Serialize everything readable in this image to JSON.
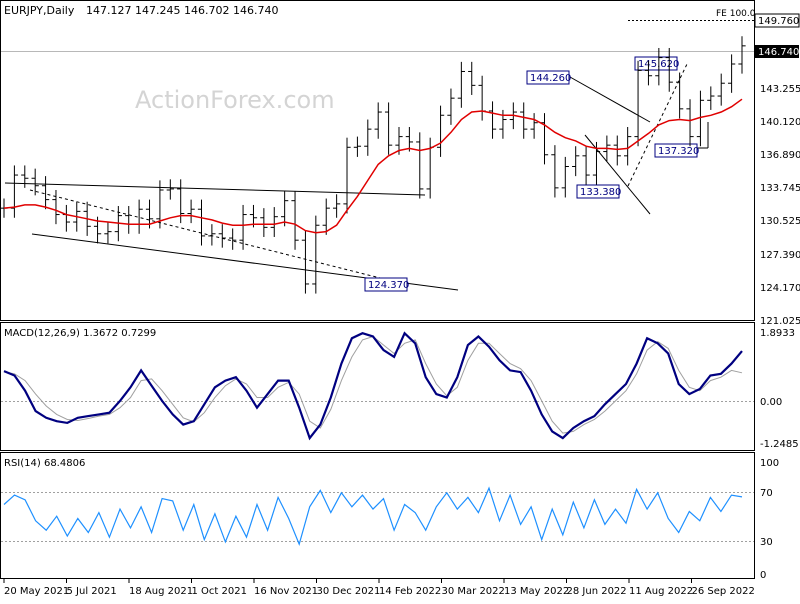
{
  "header": {
    "symbol": "EURJPY,Daily",
    "ohlc": "147.127 147.245 146.702 146.740"
  },
  "watermark": "ActionForex.com",
  "colors": {
    "price": "#000000",
    "ma": "#e00000",
    "macd": "#000080",
    "signal": "#a0a0a0",
    "rsi": "#1e90ff",
    "label_border": "#000080",
    "grid_dash": "#808080"
  },
  "chart_data": [
    {
      "type": "line",
      "panel": "price",
      "y_ticks": [
        "149.760",
        "146.740",
        "143.255",
        "140.120",
        "136.890",
        "133.745",
        "130.525",
        "127.390",
        "124.170",
        "121.025"
      ],
      "ylim": [
        121.025,
        150.9
      ],
      "current_price": "146.740",
      "target_line": {
        "label": "FE 100.0",
        "value": "149.760"
      },
      "annotations": [
        {
          "label": "124.370",
          "value": 124.37
        },
        {
          "label": "144.260",
          "value": 144.26
        },
        {
          "label": "133.380",
          "value": 133.38
        },
        {
          "label": "145.620",
          "value": 145.62
        },
        {
          "label": "137.320",
          "value": 137.32
        }
      ],
      "series": [
        {
          "values": [
            131.5,
            134.6,
            134.3,
            133.6,
            132.3,
            130.9,
            130.2,
            131.2,
            129.8,
            129.1,
            129.3,
            130.8,
            130.0,
            131.4,
            130.5,
            133.2,
            133.3,
            131.0,
            131.4,
            128.9,
            129.1,
            128.7,
            128.5,
            130.9,
            130.6,
            129.7,
            130.7,
            132.2,
            128.5,
            124.4,
            129.9,
            131.5,
            131.9,
            137.2,
            137.3,
            138.9,
            140.5,
            137.4,
            138.2,
            137.7,
            133.3,
            137.2,
            140.2,
            141.8,
            144.3,
            143.0,
            140.6,
            138.9,
            139.8,
            140.5,
            138.9,
            139.5,
            136.5,
            133.4,
            135.4,
            136.4,
            134.6,
            136.8,
            137.4,
            136.4,
            138.2,
            144.4,
            143.9,
            145.6,
            143.3,
            140.8,
            138.2,
            141.6,
            142.0,
            143.2,
            145.0,
            146.7
          ]
        },
        {
          "name": "",
          "values": [
            131.5,
            131.6,
            131.8,
            131.8,
            131.6,
            131.3,
            130.9,
            130.7,
            130.5,
            130.3,
            130.2,
            130.1,
            130.0,
            130.0,
            130.0,
            130.3,
            130.6,
            130.8,
            130.8,
            130.6,
            130.4,
            130.1,
            129.9,
            129.9,
            130.0,
            130.0,
            130.0,
            130.2,
            130.0,
            129.4,
            129.2,
            129.3,
            129.9,
            131.3,
            132.6,
            134.1,
            135.6,
            136.4,
            136.9,
            137.1,
            136.9,
            137.1,
            137.6,
            138.6,
            139.8,
            140.5,
            140.6,
            140.4,
            140.2,
            140.2,
            140.0,
            139.8,
            139.3,
            138.6,
            138.1,
            137.8,
            137.3,
            137.1,
            137.1,
            137.0,
            137.1,
            137.8,
            138.5,
            139.3,
            139.7,
            139.8,
            139.7,
            140.0,
            140.2,
            140.5,
            141.0,
            141.7
          ]
        }
      ]
    },
    {
      "type": "line",
      "panel": "MACD",
      "title": "MACD(12,26,9) 1.3672 0.7299",
      "y_ticks": [
        "1.8933",
        "0.00",
        "-1.2485"
      ],
      "ylim": [
        -1.55,
        2.2
      ],
      "series": [
        {
          "values": [
            0.78,
            0.65,
            0.2,
            -0.4,
            -0.6,
            -0.7,
            -0.75,
            -0.6,
            -0.55,
            -0.5,
            -0.45,
            -0.1,
            0.3,
            0.8,
            0.35,
            -0.1,
            -0.5,
            -0.8,
            -0.7,
            -0.2,
            0.3,
            0.5,
            0.6,
            0.2,
            -0.3,
            0.1,
            0.5,
            0.5,
            -0.3,
            -1.2,
            -0.8,
            0.0,
            1.0,
            1.75,
            1.9,
            1.8,
            1.4,
            1.2,
            1.9,
            1.6,
            0.6,
            0.1,
            0.0,
            0.6,
            1.55,
            1.8,
            1.5,
            1.1,
            0.8,
            0.75,
            0.2,
            -0.5,
            -1.0,
            -1.2,
            -0.9,
            -0.7,
            -0.55,
            -0.2,
            0.1,
            0.4,
            1.0,
            1.75,
            1.6,
            1.3,
            0.4,
            0.1,
            0.25,
            0.65,
            0.7,
            1.0,
            1.37
          ]
        },
        {
          "values": [
            0.76,
            0.7,
            0.5,
            0.1,
            -0.25,
            -0.5,
            -0.65,
            -0.68,
            -0.62,
            -0.55,
            -0.5,
            -0.3,
            0.0,
            0.5,
            0.55,
            0.2,
            -0.2,
            -0.6,
            -0.72,
            -0.45,
            0.0,
            0.35,
            0.55,
            0.4,
            0.0,
            0.0,
            0.3,
            0.45,
            0.1,
            -0.7,
            -0.9,
            -0.35,
            0.5,
            1.2,
            1.7,
            1.8,
            1.55,
            1.3,
            1.6,
            1.7,
            1.0,
            0.4,
            0.05,
            0.3,
            1.1,
            1.6,
            1.6,
            1.3,
            1.0,
            0.85,
            0.5,
            -0.1,
            -0.7,
            -1.05,
            -1.0,
            -0.8,
            -0.65,
            -0.4,
            -0.1,
            0.2,
            0.7,
            1.4,
            1.65,
            1.45,
            0.8,
            0.3,
            0.2,
            0.5,
            0.6,
            0.8,
            0.73
          ]
        }
      ]
    },
    {
      "type": "line",
      "panel": "RSI",
      "title": "RSI(14) 68.4806",
      "y_ticks": [
        "100",
        "70",
        "30",
        "0"
      ],
      "ylim": [
        0,
        100
      ],
      "series": [
        {
          "values": [
            62,
            70,
            66,
            48,
            40,
            52,
            35,
            50,
            38,
            55,
            34,
            58,
            42,
            60,
            38,
            67,
            65,
            40,
            62,
            32,
            54,
            30,
            52,
            34,
            62,
            40,
            68,
            50,
            28,
            60,
            74,
            55,
            72,
            60,
            70,
            58,
            67,
            40,
            62,
            55,
            40,
            60,
            72,
            58,
            68,
            55,
            76,
            48,
            70,
            45,
            60,
            32,
            58,
            36,
            64,
            42,
            66,
            45,
            58,
            46,
            75,
            58,
            72,
            50,
            38,
            56,
            48,
            68,
            56,
            70,
            68.5
          ]
        }
      ]
    }
  ],
  "x_axis": {
    "labels": [
      "20 May 2021",
      "5 Jul 2021",
      "18 Aug 2021",
      "1 Oct 2021",
      "16 Nov 2021",
      "30 Dec 2021",
      "14 Feb 2022",
      "30 Mar 2022",
      "13 May 2022",
      "28 Jun 2022",
      "11 Aug 2022",
      "26 Sep 2022"
    ]
  }
}
